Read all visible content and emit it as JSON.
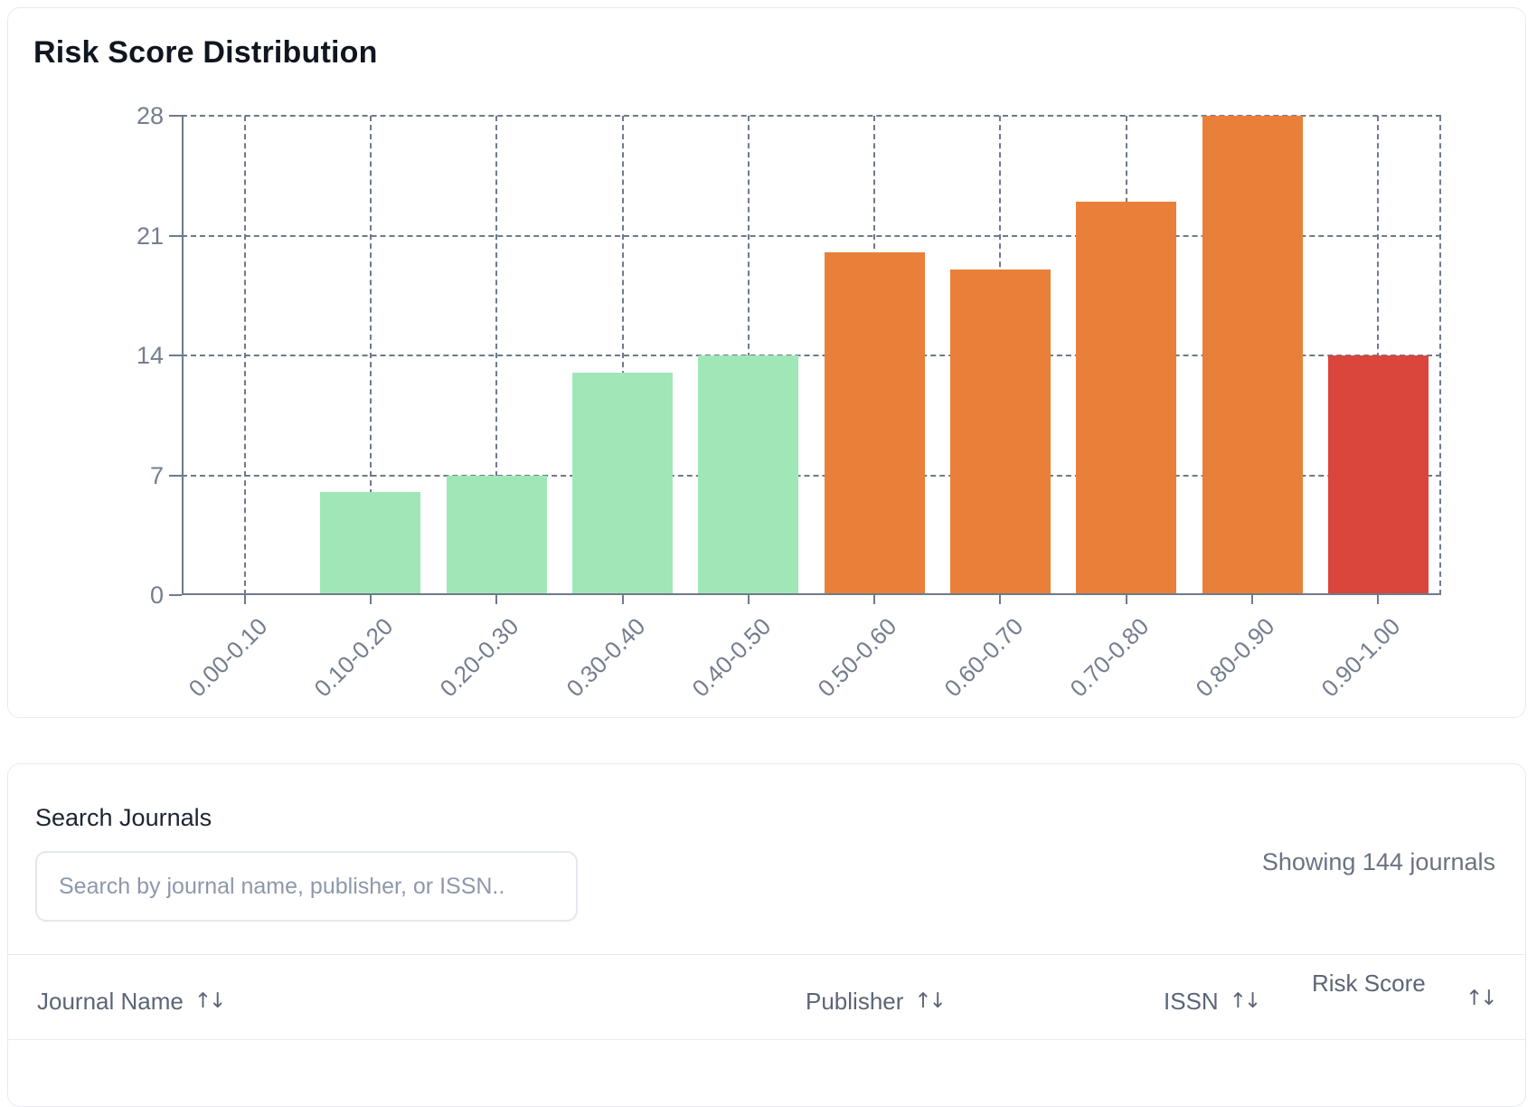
{
  "chart_data": {
    "type": "bar",
    "title": "Risk Score Distribution",
    "categories": [
      "0.00-0.10",
      "0.10-0.20",
      "0.20-0.30",
      "0.30-0.40",
      "0.40-0.50",
      "0.50-0.60",
      "0.60-0.70",
      "0.70-0.80",
      "0.80-0.90",
      "0.90-1.00"
    ],
    "values": [
      0,
      6,
      7,
      13,
      14,
      20,
      19,
      23,
      28,
      14
    ],
    "bar_colors": [
      "#a0e7b8",
      "#a0e7b8",
      "#a0e7b8",
      "#a0e7b8",
      "#a0e7b8",
      "#e8803a",
      "#e8803a",
      "#e8803a",
      "#e8803a",
      "#da453c"
    ],
    "xlabel": "",
    "ylabel": "",
    "yticks": [
      0,
      7,
      14,
      21,
      28
    ],
    "ylim": [
      0,
      28
    ],
    "grid": "dashed",
    "legend_position": "none",
    "axis_color": "#6f7a8b",
    "tick_label_color": "#757e8f"
  },
  "search_section": {
    "heading": "Search Journals",
    "search_placeholder": "Search by journal name, publisher, or ISSN..",
    "search_value": "",
    "results_summary": "Showing 144 journals"
  },
  "journal_table": {
    "sort_icon": "↑↓",
    "columns": [
      {
        "label": "Journal Name"
      },
      {
        "label": "Publisher"
      },
      {
        "label": "ISSN"
      },
      {
        "label": "Risk Score"
      }
    ]
  }
}
